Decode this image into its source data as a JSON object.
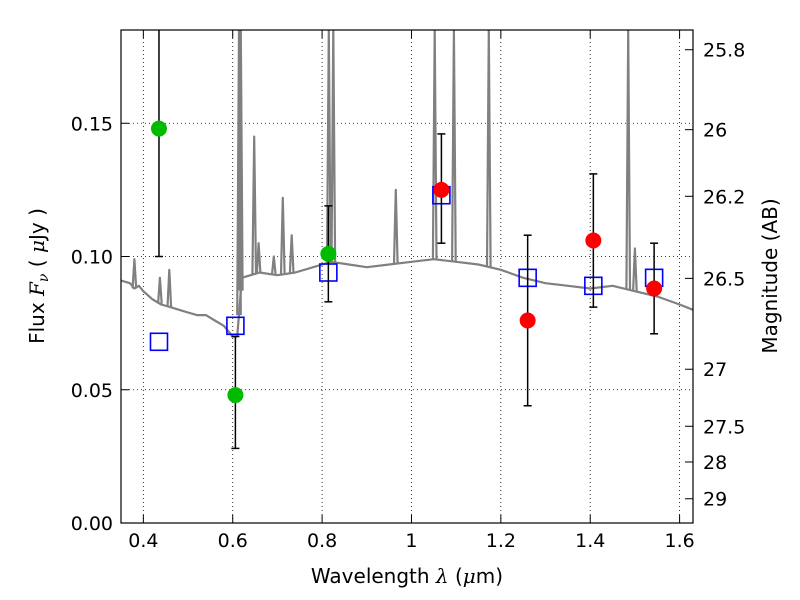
{
  "chart_data": {
    "type": "scatter",
    "title": "",
    "xlabel": "Wavelength λ (μm)",
    "xlabel_parts": {
      "prefix": "Wavelength ",
      "symbol": "λ",
      "unit_open": " (",
      "unit_mu": "μ",
      "unit_rest": "m)"
    },
    "ylabel": "Flux F_ν (μJy)",
    "ylabel_parts": {
      "prefix": "Flux ",
      "symbol": "F",
      "subscript": "ν",
      "unit_open": " ( ",
      "unit_mu": "μ",
      "unit_rest": "Jy )"
    },
    "y2label": "Magnitude (AB)",
    "xlim": [
      0.35,
      1.63
    ],
    "ylim": [
      0.0,
      0.185
    ],
    "grid": true,
    "x_ticks": [
      0.4,
      0.6,
      0.8,
      1.0,
      1.2,
      1.4,
      1.6
    ],
    "x_tick_labels": [
      "0.4",
      "0.6",
      "0.8",
      "1",
      "1.2",
      "1.4",
      "1.6"
    ],
    "y_ticks": [
      0.0,
      0.05,
      0.1,
      0.15
    ],
    "y_tick_labels": [
      "0.00",
      "0.05",
      "0.10",
      "0.15"
    ],
    "y2_ticks": [
      {
        "label": "25.8",
        "flux": 0.1776
      },
      {
        "label": "26",
        "flux": 0.1476
      },
      {
        "label": "26.2",
        "flux": 0.1226
      },
      {
        "label": "26.5",
        "flux": 0.0918
      },
      {
        "label": "27",
        "flux": 0.0577
      },
      {
        "label": "27.5",
        "flux": 0.0363
      },
      {
        "label": "28",
        "flux": 0.0229
      },
      {
        "label": "29",
        "flux": 0.0091
      }
    ],
    "series": [
      {
        "name": "Observed (green)",
        "color": "#00bb00",
        "points": [
          {
            "x": 0.435,
            "y": 0.148,
            "err_lo": 0.048,
            "err_hi": 0.04
          },
          {
            "x": 0.606,
            "y": 0.048,
            "err_lo": 0.02,
            "err_hi": 0.022
          },
          {
            "x": 0.814,
            "y": 0.101,
            "err_lo": 0.018,
            "err_hi": 0.018
          }
        ]
      },
      {
        "name": "Observed (red)",
        "color": "#ff0000",
        "points": [
          {
            "x": 1.067,
            "y": 0.125,
            "err_lo": 0.02,
            "err_hi": 0.021
          },
          {
            "x": 1.26,
            "y": 0.076,
            "err_lo": 0.032,
            "err_hi": 0.032
          },
          {
            "x": 1.407,
            "y": 0.106,
            "err_lo": 0.025,
            "err_hi": 0.025
          },
          {
            "x": 1.543,
            "y": 0.088,
            "err_lo": 0.017,
            "err_hi": 0.017
          }
        ]
      },
      {
        "name": "Model photometry",
        "color": "#0000ff",
        "marker": "open-square",
        "points": [
          {
            "x": 0.435,
            "y": 0.068
          },
          {
            "x": 0.606,
            "y": 0.074
          },
          {
            "x": 0.814,
            "y": 0.094
          },
          {
            "x": 1.067,
            "y": 0.123
          },
          {
            "x": 1.26,
            "y": 0.092
          },
          {
            "x": 1.407,
            "y": 0.089
          },
          {
            "x": 1.543,
            "y": 0.092
          }
        ]
      },
      {
        "name": "Model spectrum",
        "color": "#808080",
        "type": "line",
        "points": [
          [
            0.35,
            0.091
          ],
          [
            0.37,
            0.09
          ],
          [
            0.38,
            0.088
          ],
          [
            0.39,
            0.089
          ],
          [
            0.4,
            0.087
          ],
          [
            0.42,
            0.084
          ],
          [
            0.44,
            0.082
          ],
          [
            0.46,
            0.081
          ],
          [
            0.48,
            0.08
          ],
          [
            0.5,
            0.079
          ],
          [
            0.52,
            0.078
          ],
          [
            0.54,
            0.078
          ],
          [
            0.56,
            0.076
          ],
          [
            0.58,
            0.074
          ],
          [
            0.6,
            0.07
          ],
          [
            0.61,
            0.07
          ],
          [
            0.615,
            0.08
          ],
          [
            0.62,
            0.092
          ],
          [
            0.64,
            0.093
          ],
          [
            0.66,
            0.094
          ],
          [
            0.7,
            0.093
          ],
          [
            0.74,
            0.094
          ],
          [
            0.78,
            0.096
          ],
          [
            0.8,
            0.097
          ],
          [
            0.82,
            0.098
          ],
          [
            0.86,
            0.097
          ],
          [
            0.9,
            0.096
          ],
          [
            0.95,
            0.097
          ],
          [
            1.0,
            0.098
          ],
          [
            1.05,
            0.099
          ],
          [
            1.1,
            0.098
          ],
          [
            1.15,
            0.097
          ],
          [
            1.2,
            0.095
          ],
          [
            1.25,
            0.092
          ],
          [
            1.3,
            0.09
          ],
          [
            1.35,
            0.089
          ],
          [
            1.4,
            0.088
          ],
          [
            1.45,
            0.089
          ],
          [
            1.5,
            0.087
          ],
          [
            1.55,
            0.085
          ],
          [
            1.6,
            0.082
          ],
          [
            1.63,
            0.08
          ]
        ],
        "emission_lines": [
          {
            "x": 0.38,
            "peak": 0.099
          },
          {
            "x": 0.437,
            "peak": 0.092
          },
          {
            "x": 0.458,
            "peak": 0.095
          },
          {
            "x": 0.614,
            "peak": 0.185
          },
          {
            "x": 0.618,
            "peak": 0.185
          },
          {
            "x": 0.648,
            "peak": 0.145
          },
          {
            "x": 0.658,
            "peak": 0.105
          },
          {
            "x": 0.692,
            "peak": 0.1
          },
          {
            "x": 0.712,
            "peak": 0.122
          },
          {
            "x": 0.732,
            "peak": 0.108
          },
          {
            "x": 0.815,
            "peak": 0.185
          },
          {
            "x": 0.825,
            "peak": 0.185
          },
          {
            "x": 0.965,
            "peak": 0.125
          },
          {
            "x": 1.052,
            "peak": 0.185
          },
          {
            "x": 1.095,
            "peak": 0.185
          },
          {
            "x": 1.173,
            "peak": 0.185
          },
          {
            "x": 1.485,
            "peak": 0.185
          },
          {
            "x": 1.5,
            "peak": 0.103
          }
        ]
      }
    ]
  }
}
